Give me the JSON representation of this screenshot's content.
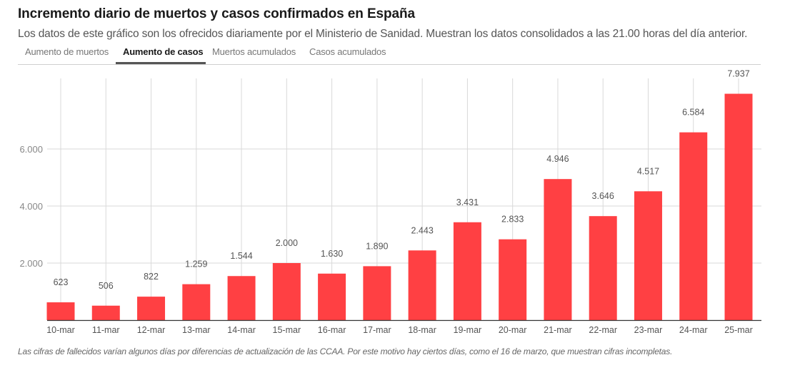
{
  "header": {
    "title": "Incremento diario de muertos y casos confirmados en España",
    "subtitle": "Los datos de este gráfico son los ofrecidos diariamente por el Ministerio de Sanidad. Muestran los datos consolidados a las 21.00 horas del día anterior."
  },
  "tabs": [
    {
      "label": "Aumento de muertos",
      "active": false
    },
    {
      "label": "Aumento de casos",
      "active": true
    },
    {
      "label": "Muertos acumulados",
      "active": false
    },
    {
      "label": "Casos acumulados",
      "active": false
    }
  ],
  "footnote": "Las cifras de fallecidos varían algunos días por diferencias de actualización de las CCAA. Por este motivo hay ciertos días, como el 16 de marzo, que muestran cifras incompletas.",
  "colors": {
    "bar": "#ff4043",
    "grid": "#d9d9d9",
    "axis": "#333333",
    "label": "#555555",
    "tick": "#888888"
  },
  "chart_data": {
    "type": "bar",
    "title": "Aumento de casos",
    "xlabel": "",
    "ylabel": "",
    "categories": [
      "10-mar",
      "11-mar",
      "12-mar",
      "13-mar",
      "14-mar",
      "15-mar",
      "16-mar",
      "17-mar",
      "18-mar",
      "19-mar",
      "20-mar",
      "21-mar",
      "22-mar",
      "23-mar",
      "24-mar",
      "25-mar"
    ],
    "values": [
      623,
      506,
      822,
      1259,
      1544,
      2000,
      1630,
      1890,
      2443,
      3431,
      2833,
      4946,
      3646,
      4517,
      6584,
      7937
    ],
    "value_labels": [
      "623",
      "506",
      "822",
      "1.259",
      "1.544",
      "2.000",
      "1.630",
      "1.890",
      "2.443",
      "3.431",
      "2.833",
      "4.946",
      "3.646",
      "4.517",
      "6.584",
      "7.937"
    ],
    "yticks": [
      2000,
      4000,
      6000
    ],
    "ytick_labels": [
      "2.000",
      "4.000",
      "6.000"
    ],
    "ylim": [
      0,
      8500
    ],
    "grid": true,
    "legend": "none"
  }
}
